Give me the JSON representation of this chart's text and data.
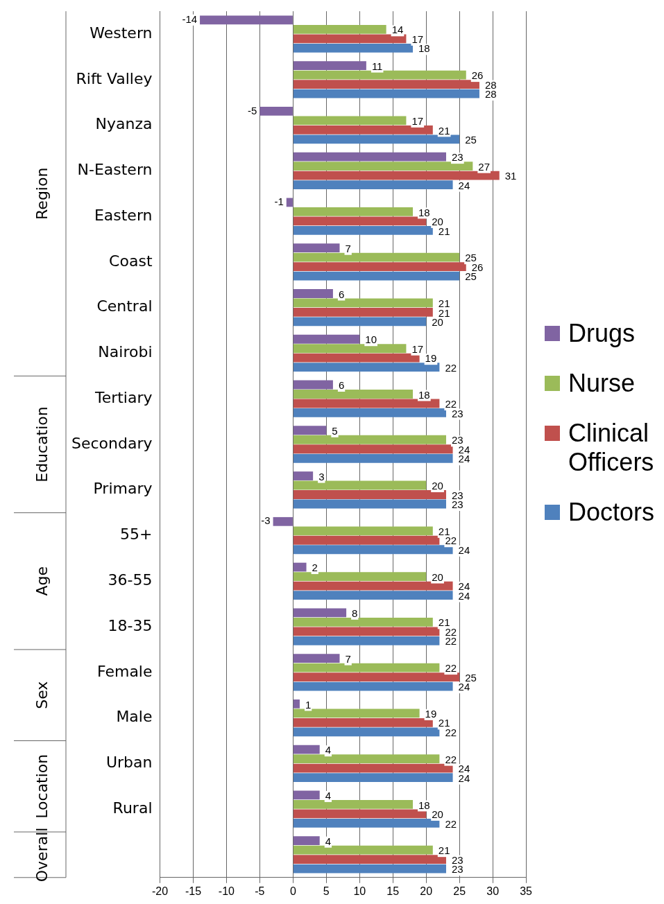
{
  "chart_data": {
    "type": "bar",
    "orientation": "horizontal",
    "categories": [
      "Western",
      "Rift Valley",
      "Nyanza",
      "N-Eastern",
      "Eastern",
      "Coast",
      "Central",
      "Nairobi",
      "Tertiary",
      "Secondary",
      "Primary",
      "55+",
      "36-55",
      "18-35",
      "Female",
      "Male",
      "Urban",
      "Rural",
      null
    ],
    "series": [
      {
        "name": "Drugs",
        "color": "#8064a2",
        "values": [
          -14,
          11,
          -5,
          23,
          -1,
          7,
          6,
          10,
          6,
          5,
          3,
          -3,
          2,
          8,
          7,
          1,
          4,
          4,
          4
        ]
      },
      {
        "name": "Nurse",
        "color": "#9bbb59",
        "values": [
          14,
          26,
          17,
          27,
          18,
          25,
          21,
          17,
          18,
          23,
          20,
          21,
          20,
          21,
          22,
          19,
          22,
          18,
          21
        ]
      },
      {
        "name": "Clinical Officers",
        "color": "#c0504d",
        "values": [
          17,
          28,
          21,
          31,
          20,
          26,
          21,
          19,
          22,
          24,
          23,
          22,
          24,
          22,
          25,
          21,
          24,
          20,
          23
        ]
      },
      {
        "name": "Doctors",
        "color": "#4f81bd",
        "values": [
          18,
          28,
          25,
          24,
          21,
          25,
          20,
          22,
          23,
          24,
          23,
          24,
          24,
          22,
          24,
          22,
          24,
          22,
          23
        ]
      }
    ],
    "xlim": [
      -20,
      35
    ],
    "xticks": [
      -20,
      -15,
      -10,
      -5,
      0,
      5,
      10,
      15,
      20,
      25,
      30,
      35
    ],
    "annotations": [
      "Region",
      "Education",
      "Age",
      "Sex",
      "Location",
      "Overall"
    ],
    "data_labels": true,
    "grid": "x",
    "legend": "right"
  }
}
